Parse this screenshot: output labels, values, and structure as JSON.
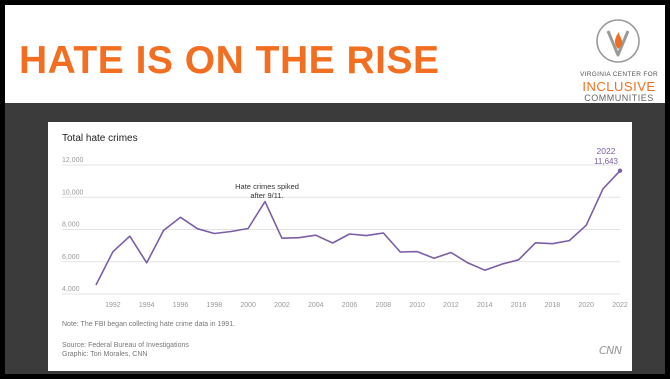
{
  "slide": {
    "title": "HATE IS ON THE RISE",
    "logo": {
      "line1": "VIRGINIA CENTER FOR",
      "line2": "INCLUSIVE",
      "line3": "COMMUNITIES",
      "icon": "v-flame-logo-icon"
    },
    "colors": {
      "accent": "#f26f21",
      "line": "#7b5ea7",
      "background": "#3b3b3b"
    }
  },
  "chart": {
    "note": "Note: The FBI began collecting hate crime data in 1991.",
    "source": "Source: Federal Bureau of Investigations",
    "graphic": "Graphic: Tori Morales, CNN",
    "brand": "CNN"
  },
  "chart_data": {
    "type": "line",
    "title": "Total hate crimes",
    "xlabel": "",
    "ylabel": "",
    "ylim": [
      4000,
      12000
    ],
    "xlim": [
      1991,
      2022
    ],
    "yticks": [
      4000,
      6000,
      8000,
      10000,
      12000
    ],
    "ytick_labels": [
      "4,000",
      "6,000",
      "8,000",
      "10,000",
      "12,000"
    ],
    "xticks": [
      1992,
      1994,
      1996,
      1998,
      2000,
      2002,
      2004,
      2006,
      2008,
      2010,
      2012,
      2014,
      2016,
      2018,
      2020,
      2022
    ],
    "grid": true,
    "x": [
      1991,
      1992,
      1993,
      1994,
      1995,
      1996,
      1997,
      1998,
      1999,
      2000,
      2001,
      2002,
      2003,
      2004,
      2005,
      2006,
      2007,
      2008,
      2009,
      2010,
      2011,
      2012,
      2013,
      2014,
      2015,
      2016,
      2017,
      2018,
      2019,
      2020,
      2021,
      2022
    ],
    "values": [
      4558,
      6623,
      7587,
      5932,
      7947,
      8759,
      8049,
      7755,
      7876,
      8063,
      9730,
      7462,
      7489,
      7649,
      7163,
      7722,
      7624,
      7783,
      6604,
      6628,
      6222,
      6573,
      5928,
      5479,
      5850,
      6121,
      7175,
      7120,
      7314,
      8263,
      10530,
      11643
    ],
    "annotations": [
      {
        "text_line1": "Hate crimes spiked",
        "text_line2": "after 9/11.",
        "x": 2001,
        "y": 9730
      },
      {
        "text_line1": "2022",
        "text_line2": "11,643",
        "x": 2022,
        "y": 11643
      }
    ]
  }
}
